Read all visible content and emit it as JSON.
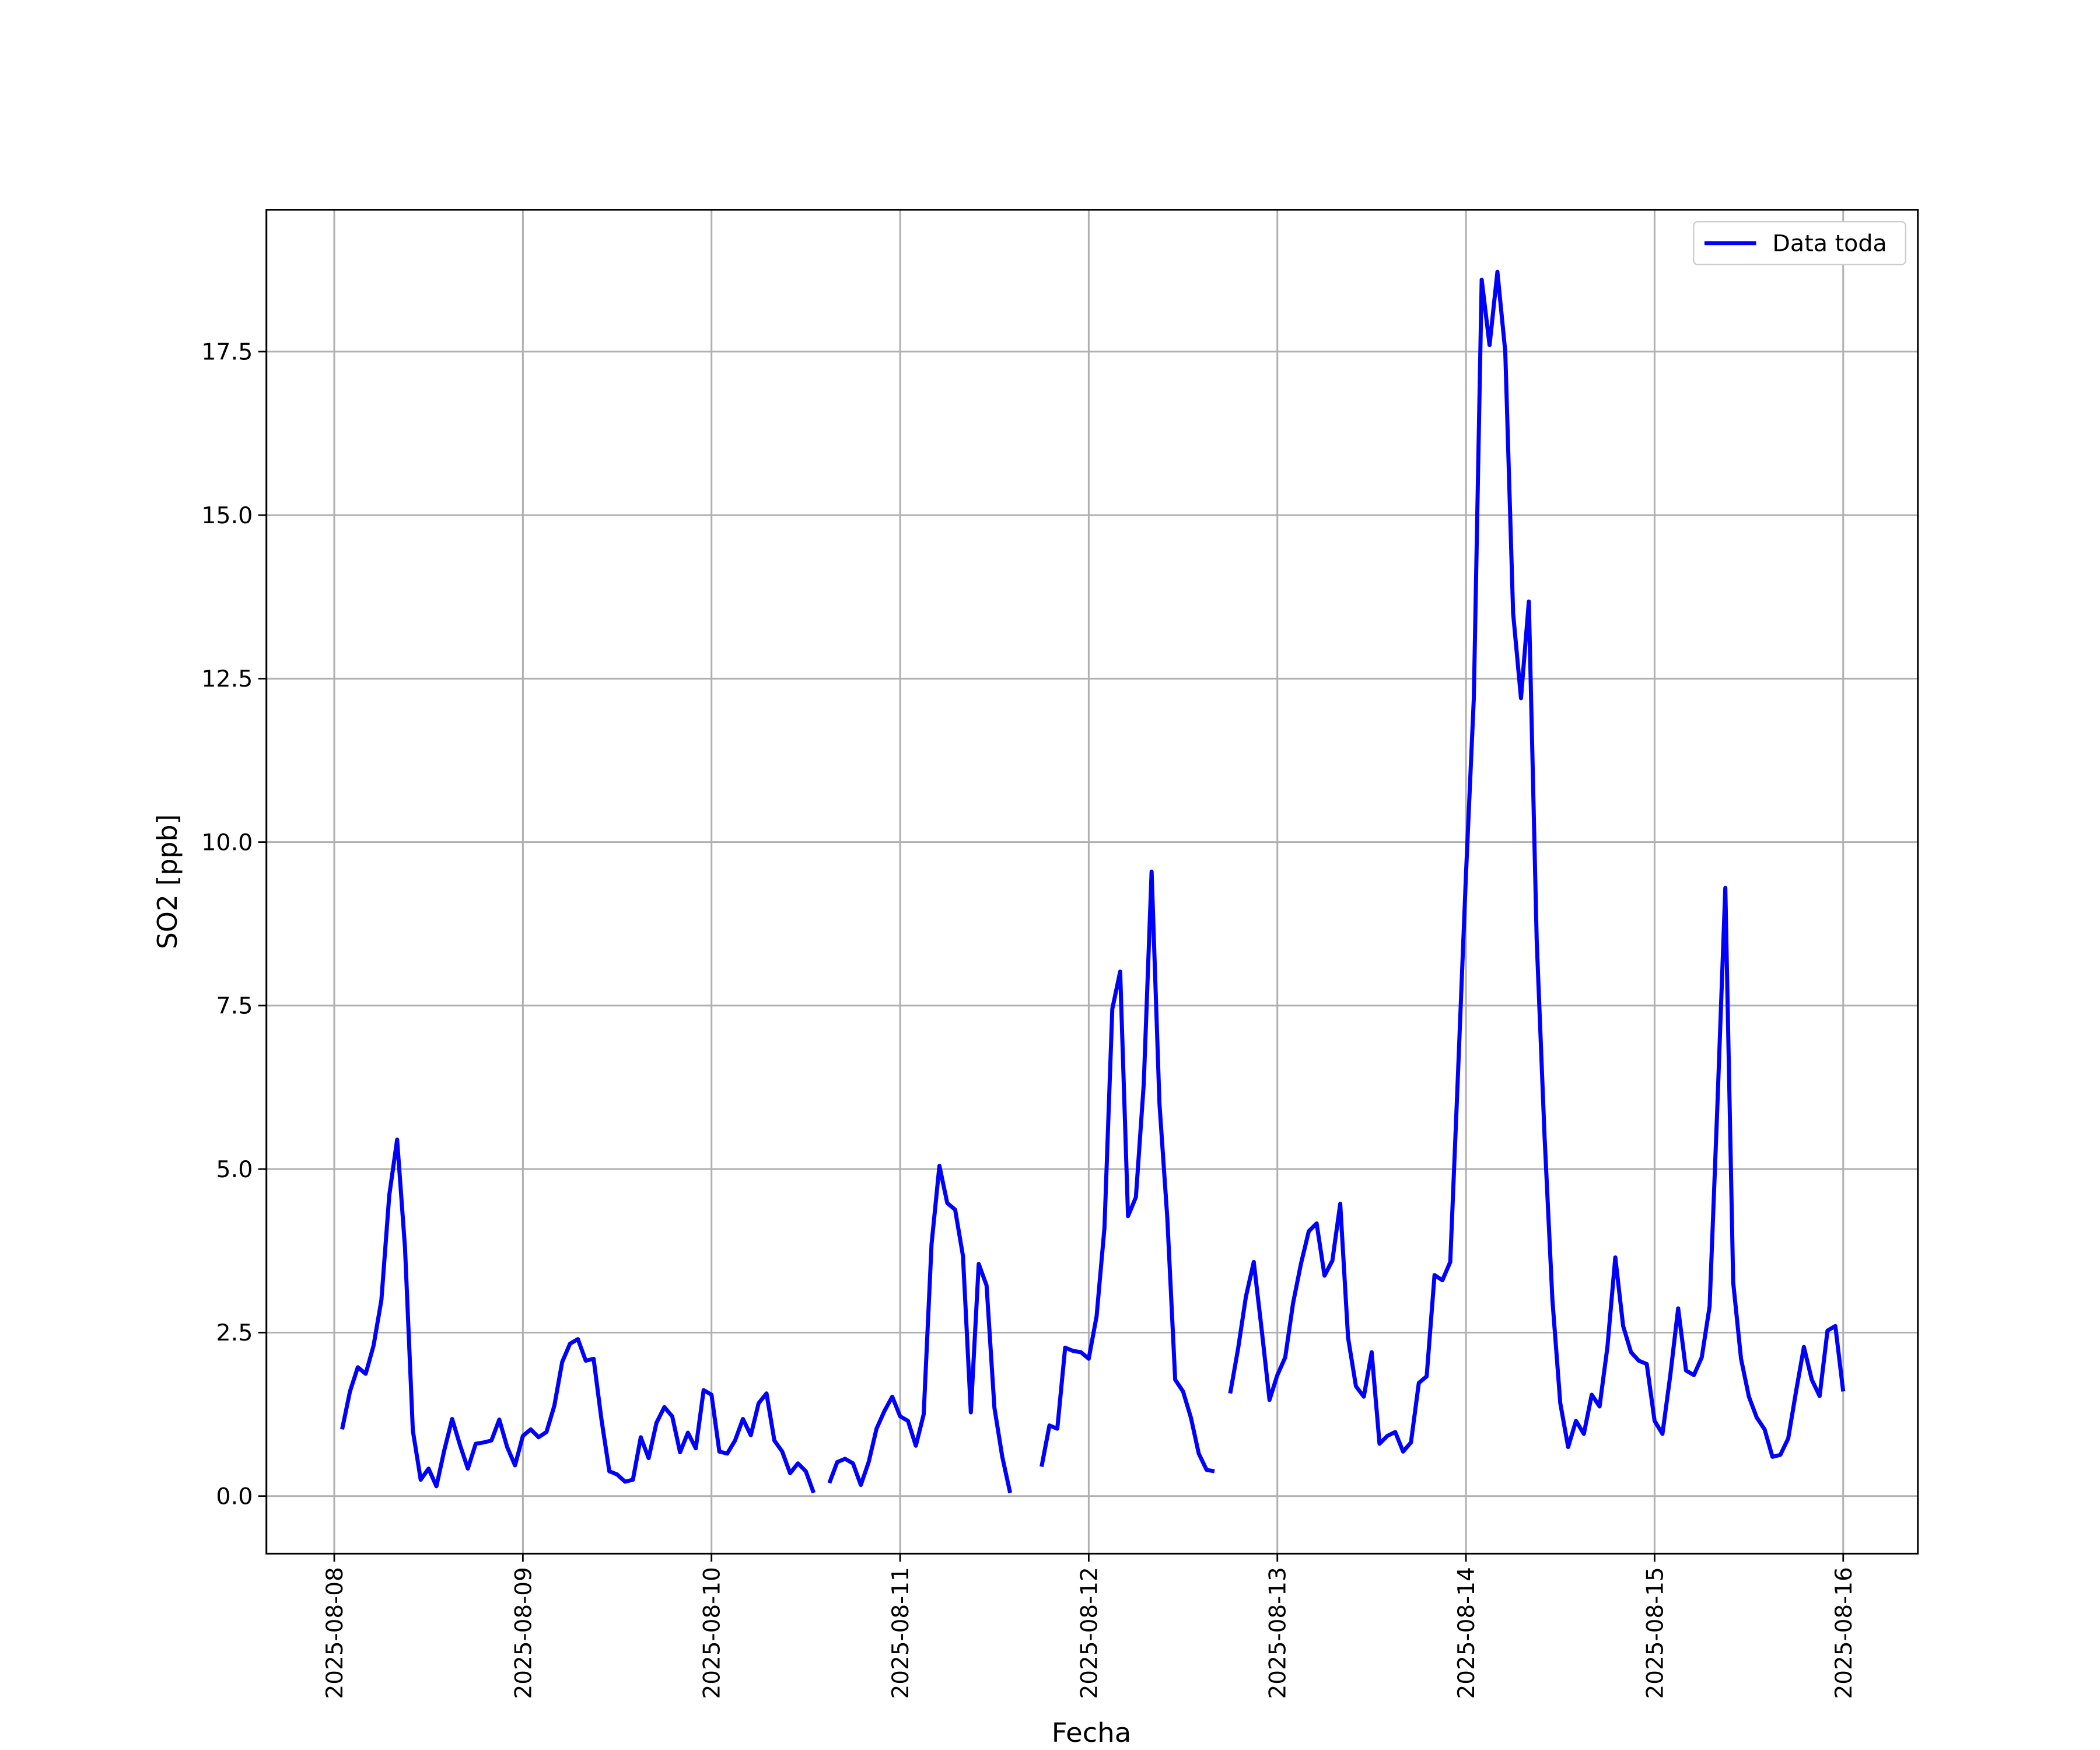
{
  "chart_data": {
    "type": "line",
    "xlabel": "Fecha",
    "ylabel": "SO2 [ppb]",
    "x": [
      "2025-08-08 01:00",
      "2025-08-08 02:00",
      "2025-08-08 03:00",
      "2025-08-08 04:00",
      "2025-08-08 05:00",
      "2025-08-08 06:00",
      "2025-08-08 07:00",
      "2025-08-08 08:00",
      "2025-08-08 09:00",
      "2025-08-08 10:00",
      "2025-08-08 11:00",
      "2025-08-08 12:00",
      "2025-08-08 13:00",
      "2025-08-08 14:00",
      "2025-08-08 15:00",
      "2025-08-08 16:00",
      "2025-08-08 17:00",
      "2025-08-08 18:00",
      "2025-08-08 19:00",
      "2025-08-08 20:00",
      "2025-08-08 21:00",
      "2025-08-08 22:00",
      "2025-08-08 23:00",
      "2025-08-09 00:00",
      "2025-08-09 01:00",
      "2025-08-09 02:00",
      "2025-08-09 03:00",
      "2025-08-09 04:00",
      "2025-08-09 05:00",
      "2025-08-09 06:00",
      "2025-08-09 07:00",
      "2025-08-09 08:00",
      "2025-08-09 09:00",
      "2025-08-09 10:00",
      "2025-08-09 11:00",
      "2025-08-09 12:00",
      "2025-08-09 13:00",
      "2025-08-09 14:00",
      "2025-08-09 15:00",
      "2025-08-09 16:00",
      "2025-08-09 17:00",
      "2025-08-09 18:00",
      "2025-08-09 19:00",
      "2025-08-09 20:00",
      "2025-08-09 21:00",
      "2025-08-09 22:00",
      "2025-08-09 23:00",
      "2025-08-10 00:00",
      "2025-08-10 01:00",
      "2025-08-10 02:00",
      "2025-08-10 03:00",
      "2025-08-10 04:00",
      "2025-08-10 05:00",
      "2025-08-10 06:00",
      "2025-08-10 07:00",
      "2025-08-10 08:00",
      "2025-08-10 09:00",
      "2025-08-10 10:00",
      "2025-08-10 11:00",
      "2025-08-10 12:00",
      "2025-08-10 13:00",
      "2025-08-10 14:00",
      "2025-08-10 15:00",
      "2025-08-10 16:00",
      "2025-08-10 17:00",
      "2025-08-10 18:00",
      "2025-08-10 19:00",
      "2025-08-10 20:00",
      "2025-08-10 21:00",
      "2025-08-10 22:00",
      "2025-08-10 23:00",
      "2025-08-11 00:00",
      "2025-08-11 01:00",
      "2025-08-11 02:00",
      "2025-08-11 03:00",
      "2025-08-11 04:00",
      "2025-08-11 05:00",
      "2025-08-11 06:00",
      "2025-08-11 07:00",
      "2025-08-11 08:00",
      "2025-08-11 09:00",
      "2025-08-11 10:00",
      "2025-08-11 11:00",
      "2025-08-11 12:00",
      "2025-08-11 13:00",
      "2025-08-11 14:00",
      "2025-08-11 15:00",
      "2025-08-11 16:00",
      "2025-08-11 17:00",
      "2025-08-11 18:00",
      "2025-08-11 19:00",
      "2025-08-11 20:00",
      "2025-08-11 21:00",
      "2025-08-11 22:00",
      "2025-08-11 23:00",
      "2025-08-12 00:00",
      "2025-08-12 01:00",
      "2025-08-12 02:00",
      "2025-08-12 03:00",
      "2025-08-12 04:00",
      "2025-08-12 05:00",
      "2025-08-12 06:00",
      "2025-08-12 07:00",
      "2025-08-12 08:00",
      "2025-08-12 09:00",
      "2025-08-12 10:00",
      "2025-08-12 11:00",
      "2025-08-12 12:00",
      "2025-08-12 13:00",
      "2025-08-12 14:00",
      "2025-08-12 15:00",
      "2025-08-12 16:00",
      "2025-08-12 17:00",
      "2025-08-12 18:00",
      "2025-08-12 19:00",
      "2025-08-12 20:00",
      "2025-08-12 21:00",
      "2025-08-12 22:00",
      "2025-08-12 23:00",
      "2025-08-13 00:00",
      "2025-08-13 01:00",
      "2025-08-13 02:00",
      "2025-08-13 03:00",
      "2025-08-13 04:00",
      "2025-08-13 05:00",
      "2025-08-13 06:00",
      "2025-08-13 07:00",
      "2025-08-13 08:00",
      "2025-08-13 09:00",
      "2025-08-13 10:00",
      "2025-08-13 11:00",
      "2025-08-13 12:00",
      "2025-08-13 13:00",
      "2025-08-13 14:00",
      "2025-08-13 15:00",
      "2025-08-13 16:00",
      "2025-08-13 17:00",
      "2025-08-13 18:00",
      "2025-08-13 19:00",
      "2025-08-13 20:00",
      "2025-08-13 21:00",
      "2025-08-13 22:00",
      "2025-08-13 23:00",
      "2025-08-14 00:00",
      "2025-08-14 01:00",
      "2025-08-14 02:00",
      "2025-08-14 03:00",
      "2025-08-14 04:00",
      "2025-08-14 05:00",
      "2025-08-14 06:00",
      "2025-08-14 07:00",
      "2025-08-14 08:00",
      "2025-08-14 09:00",
      "2025-08-14 10:00",
      "2025-08-14 11:00",
      "2025-08-14 12:00",
      "2025-08-14 13:00",
      "2025-08-14 14:00",
      "2025-08-14 15:00",
      "2025-08-14 16:00",
      "2025-08-14 17:00",
      "2025-08-14 18:00",
      "2025-08-14 19:00",
      "2025-08-14 20:00",
      "2025-08-14 21:00",
      "2025-08-14 22:00",
      "2025-08-14 23:00",
      "2025-08-15 00:00",
      "2025-08-15 01:00",
      "2025-08-15 02:00",
      "2025-08-15 03:00",
      "2025-08-15 04:00",
      "2025-08-15 05:00",
      "2025-08-15 06:00",
      "2025-08-15 07:00",
      "2025-08-15 08:00",
      "2025-08-15 09:00",
      "2025-08-15 10:00",
      "2025-08-15 11:00",
      "2025-08-15 12:00",
      "2025-08-15 13:00",
      "2025-08-15 14:00",
      "2025-08-15 15:00",
      "2025-08-15 16:00",
      "2025-08-15 17:00",
      "2025-08-15 18:00",
      "2025-08-15 19:00",
      "2025-08-15 20:00",
      "2025-08-15 21:00",
      "2025-08-15 22:00",
      "2025-08-15 23:00",
      "2025-08-16 00:00"
    ],
    "series": [
      {
        "name": "Data toda",
        "color": "#0000ff",
        "values": [
          1.02,
          1.6,
          1.97,
          1.87,
          2.3,
          3.0,
          4.6,
          5.45,
          3.8,
          1.0,
          0.25,
          0.42,
          0.15,
          0.7,
          1.18,
          0.78,
          0.42,
          0.8,
          0.82,
          0.85,
          1.17,
          0.75,
          0.47,
          0.92,
          1.02,
          0.9,
          0.98,
          1.38,
          2.05,
          2.33,
          2.4,
          2.07,
          2.1,
          1.17,
          0.38,
          0.33,
          0.22,
          0.25,
          0.9,
          0.58,
          1.12,
          1.36,
          1.22,
          0.67,
          0.97,
          0.73,
          1.62,
          1.55,
          0.68,
          0.65,
          0.85,
          1.18,
          0.93,
          1.42,
          1.57,
          0.85,
          0.68,
          0.35,
          0.5,
          0.38,
          0.05,
          null,
          0.2,
          0.52,
          0.57,
          0.5,
          0.17,
          0.52,
          1.03,
          1.3,
          1.52,
          1.22,
          1.15,
          0.77,
          1.25,
          3.85,
          5.05,
          4.48,
          4.38,
          3.67,
          1.28,
          3.55,
          3.22,
          1.35,
          0.6,
          0.05,
          null,
          null,
          null,
          0.45,
          1.08,
          1.03,
          2.27,
          2.22,
          2.2,
          2.1,
          2.75,
          4.1,
          7.45,
          8.02,
          4.28,
          4.57,
          6.3,
          9.55,
          6.0,
          4.25,
          1.78,
          1.6,
          1.2,
          0.65,
          0.4,
          0.38,
          null,
          1.57,
          2.25,
          3.05,
          3.58,
          2.55,
          1.47,
          1.85,
          2.12,
          2.95,
          3.55,
          4.05,
          4.17,
          3.37,
          3.6,
          4.47,
          2.42,
          1.68,
          1.52,
          2.2,
          0.8,
          0.92,
          0.98,
          0.68,
          0.82,
          1.73,
          1.83,
          3.38,
          3.3,
          3.58,
          6.5,
          9.5,
          12.2,
          18.6,
          17.6,
          18.72,
          17.5,
          13.5,
          12.2,
          13.68,
          8.5,
          5.5,
          3.0,
          1.42,
          0.75,
          1.15,
          0.95,
          1.55,
          1.37,
          2.28,
          3.65,
          2.6,
          2.2,
          2.07,
          2.02,
          1.15,
          0.95,
          1.85,
          2.87,
          1.92,
          1.85,
          2.12,
          2.9,
          6.0,
          9.3,
          3.27,
          2.1,
          1.52,
          1.2,
          1.02,
          0.6,
          0.63,
          0.88,
          1.6,
          2.28,
          1.78,
          1.53,
          2.53,
          2.6,
          1.6
        ]
      }
    ],
    "xlim": [
      "2025-08-07 15:22",
      "2025-08-16 09:30"
    ],
    "xticks": [
      "2025-08-08",
      "2025-08-09",
      "2025-08-10",
      "2025-08-11",
      "2025-08-12",
      "2025-08-13",
      "2025-08-14",
      "2025-08-15",
      "2025-08-16"
    ],
    "ylim": [
      -0.88,
      19.67
    ],
    "yticks": [
      {
        "value": 0,
        "label": "0.0"
      },
      2.5,
      {
        "value": 5,
        "label": "5.0"
      },
      7.5,
      {
        "value": 10,
        "label": "10.0"
      },
      12.5,
      {
        "value": 15,
        "label": "15.0"
      },
      17.5
    ],
    "grid": true,
    "legend": "upper right"
  }
}
